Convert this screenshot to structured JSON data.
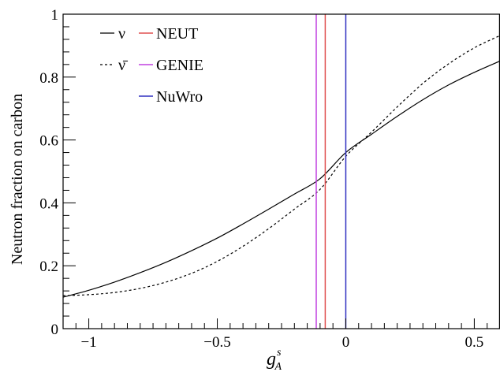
{
  "chart_data": {
    "type": "line",
    "xlabel_main": "g",
    "xlabel_sup": "s",
    "xlabel_sub": "A",
    "ylabel": "Neutron fraction on carbon",
    "xlim": [
      -1.1,
      0.6
    ],
    "ylim": [
      0,
      1
    ],
    "x_ticks": [
      -1,
      -0.5,
      0,
      0.5
    ],
    "x_tick_labels": [
      "−1",
      "−0.5",
      "0",
      "0.5"
    ],
    "y_ticks": [
      0,
      0.2,
      0.4,
      0.6,
      0.8,
      1
    ],
    "y_tick_labels": [
      "0",
      "0.2",
      "0.4",
      "0.6",
      "0.8",
      "1"
    ],
    "grid": false,
    "legend_position": "top-left",
    "series": [
      {
        "name": "ν",
        "style": "solid",
        "color": "#000000",
        "x": [
          -1.1,
          -1.0,
          -0.9,
          -0.8,
          -0.7,
          -0.6,
          -0.5,
          -0.4,
          -0.3,
          -0.2,
          -0.1,
          0.0,
          0.1,
          0.2,
          0.3,
          0.4,
          0.5,
          0.6
        ],
        "y": [
          0.1,
          0.122,
          0.148,
          0.178,
          0.211,
          0.248,
          0.288,
          0.333,
          0.38,
          0.428,
          0.477,
          0.56,
          0.618,
          0.675,
          0.728,
          0.775,
          0.815,
          0.851
        ]
      },
      {
        "name": "ν̄",
        "style": "dashed",
        "color": "#000000",
        "x": [
          -1.1,
          -1.0,
          -0.9,
          -0.8,
          -0.7,
          -0.6,
          -0.5,
          -0.4,
          -0.3,
          -0.2,
          -0.1,
          0.0,
          0.1,
          0.2,
          0.3,
          0.4,
          0.5,
          0.6
        ],
        "y": [
          0.105,
          0.108,
          0.115,
          0.128,
          0.148,
          0.176,
          0.214,
          0.262,
          0.318,
          0.38,
          0.443,
          0.548,
          0.625,
          0.705,
          0.78,
          0.842,
          0.893,
          0.932
        ]
      }
    ],
    "vertical_lines": [
      {
        "name": "NEUT",
        "x": -0.08,
        "color": "#e05050"
      },
      {
        "name": "GENIE",
        "x": -0.115,
        "color": "#c040e0"
      },
      {
        "name": "NuWro",
        "x": 0.0,
        "color": "#3030c0"
      }
    ]
  }
}
